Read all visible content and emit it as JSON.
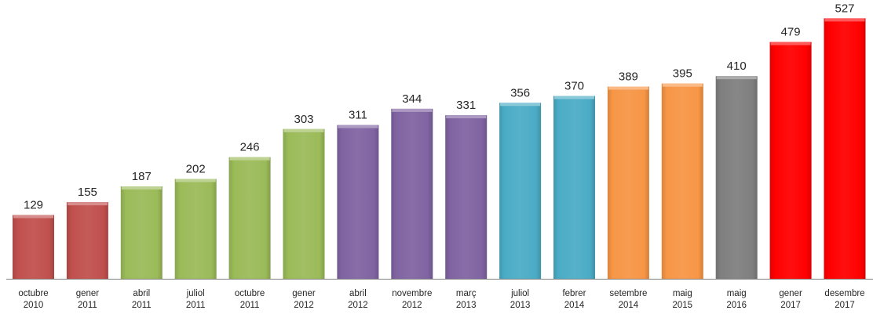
{
  "chart_data": {
    "type": "bar",
    "title": "",
    "xlabel": "",
    "ylabel": "",
    "ylim": [
      0,
      545
    ],
    "grid": false,
    "legend": "none",
    "categories": [
      [
        "octubre",
        "2010"
      ],
      [
        "gener",
        "2011"
      ],
      [
        "abril",
        "2011"
      ],
      [
        "juliol",
        "2011"
      ],
      [
        "octubre",
        "2011"
      ],
      [
        "gener",
        "2012"
      ],
      [
        "abril",
        "2012"
      ],
      [
        "novembre",
        "2012"
      ],
      [
        "març",
        "2013"
      ],
      [
        "juliol",
        "2013"
      ],
      [
        "febrer",
        "2014"
      ],
      [
        "setembre",
        "2014"
      ],
      [
        "maig",
        "2015"
      ],
      [
        "maig",
        "2016"
      ],
      [
        "gener",
        "2017"
      ],
      [
        "desembre",
        "2017"
      ]
    ],
    "values": [
      129,
      155,
      187,
      202,
      246,
      303,
      311,
      344,
      331,
      356,
      370,
      389,
      395,
      410,
      479,
      527
    ],
    "colors": [
      "#c0504d",
      "#c0504d",
      "#9bbb59",
      "#9bbb59",
      "#9bbb59",
      "#9bbb59",
      "#8064a2",
      "#8064a2",
      "#8064a2",
      "#4bacc6",
      "#4bacc6",
      "#f79646",
      "#f79646",
      "#7f7f7f",
      "#ff0000",
      "#ff0000"
    ]
  }
}
